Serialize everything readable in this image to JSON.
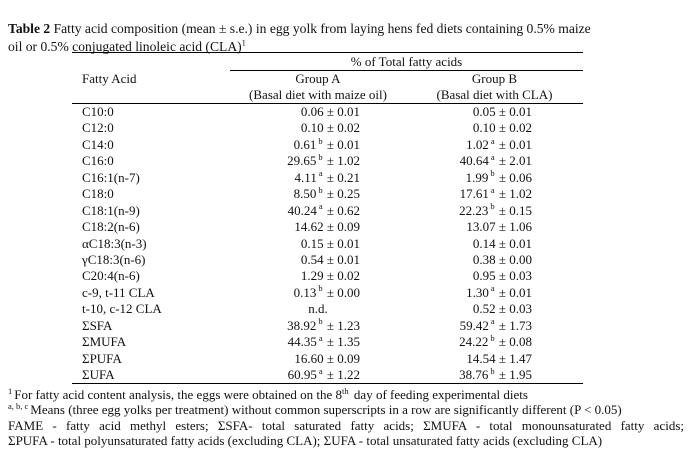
{
  "colors": {
    "background": "#ffffff",
    "text": "#111111",
    "rule": "#000000"
  },
  "caption": {
    "label": "Table 2",
    "line1": " Fatty acid composition (mean ± s.e.) in egg yolk from laying hens fed diets containing 0.5% maize",
    "line2": "oil or 0.5% conjugated linoleic acid (CLA)",
    "footnote_ref": "1"
  },
  "table": {
    "span_header": "% of Total fatty acids",
    "col1_header": "Fatty Acid",
    "group_a": {
      "name": "Group A",
      "subtitle": "(Basal diet with maize oil)"
    },
    "group_b": {
      "name": "Group B",
      "subtitle": "(Basal diet with CLA)"
    },
    "rows": [
      {
        "name": "C10:0",
        "a_val": "0.06",
        "a_sup": "",
        "a_se": "0.01",
        "b_val": "0.05",
        "b_sup": "",
        "b_se": "0.01"
      },
      {
        "name": "C12:0",
        "a_val": "0.10",
        "a_sup": "",
        "a_se": "0.02",
        "b_val": "0.10",
        "b_sup": "",
        "b_se": "0.02"
      },
      {
        "name": "C14:0",
        "a_val": "0.61",
        "a_sup": "b",
        "a_se": "0.01",
        "b_val": "1.02",
        "b_sup": "a",
        "b_se": "0.01"
      },
      {
        "name": "C16:0",
        "a_val": "29.65",
        "a_sup": "b",
        "a_se": "1.02",
        "b_val": "40.64",
        "b_sup": "a",
        "b_se": "2.01"
      },
      {
        "name": "C16:1(n-7)",
        "a_val": "4.11",
        "a_sup": "a",
        "a_se": "0.21",
        "b_val": "1.99",
        "b_sup": "b",
        "b_se": "0.06"
      },
      {
        "name": "C18:0",
        "a_val": "8.50",
        "a_sup": "b",
        "a_se": "0.25",
        "b_val": "17.61",
        "b_sup": "a",
        "b_se": "1.02"
      },
      {
        "name": "C18:1(n-9)",
        "a_val": "40.24",
        "a_sup": "a",
        "a_se": "0.62",
        "b_val": "22.23",
        "b_sup": "b",
        "b_se": "0.15"
      },
      {
        "name": "C18:2(n-6)",
        "a_val": "14.62",
        "a_sup": "",
        "a_se": "0.09",
        "b_val": "13.07",
        "b_sup": "",
        "b_se": "1.06"
      },
      {
        "name": "αC18:3(n-3)",
        "a_val": "0.15",
        "a_sup": "",
        "a_se": "0.01",
        "b_val": "0.14",
        "b_sup": "",
        "b_se": "0.01"
      },
      {
        "name": "γC18:3(n-6)",
        "a_val": "0.54",
        "a_sup": "",
        "a_se": "0.01",
        "b_val": "0.38",
        "b_sup": "",
        "b_se": "0.00"
      },
      {
        "name": "C20:4(n-6)",
        "a_val": "1.29",
        "a_sup": "",
        "a_se": "0.02",
        "b_val": "0.95",
        "b_sup": "",
        "b_se": "0.03"
      },
      {
        "name": "c-9, t-11 CLA",
        "a_val": "0.13",
        "a_sup": "b",
        "a_se": "0.00",
        "b_val": "1.30",
        "b_sup": "a",
        "b_se": "0.01"
      },
      {
        "name": "t-10, c-12 CLA",
        "a_text": "n.d.",
        "b_val": "0.52",
        "b_sup": "",
        "b_se": "0.03"
      },
      {
        "name": "ΣSFA",
        "a_val": "38.92",
        "a_sup": "b",
        "a_se": "1.23",
        "b_val": "59.42",
        "b_sup": "a",
        "b_se": "1.73"
      },
      {
        "name": "ΣMUFA",
        "a_val": "44.35",
        "a_sup": "a",
        "a_se": "1.35",
        "b_val": "24.22",
        "b_sup": "b",
        "b_se": "0.08"
      },
      {
        "name": "ΣPUFA",
        "a_val": "16.60",
        "a_sup": "",
        "a_se": "0.09",
        "b_val": "14.54",
        "b_sup": "",
        "b_se": "1.47"
      },
      {
        "name": "ΣUFA",
        "a_val": "60.95",
        "a_sup": "a",
        "a_se": "1.22",
        "b_val": "38.76",
        "b_sup": "b",
        "b_se": "1.95"
      }
    ]
  },
  "footnotes": {
    "f1": {
      "marker": "1",
      "text_before_sup": "For fatty acid content analysis, the eggs were obtained on the 8",
      "inline_sup": "th",
      "text_after_sup": " day of feeding experimental diets"
    },
    "f2": {
      "marker": "a, b, c",
      "text": "Means (three egg yolks per treatment) without common superscripts in a row are significantly different (P < 0.05)"
    },
    "f3_line1": "FAME - fatty acid methyl esters; ΣSFA- total saturated fatty acids; ΣMUFA - total monounsaturated fatty acids;",
    "f3_line2": "ΣPUFA - total polyunsaturated fatty acids (excluding CLA); ΣUFA - total unsaturated fatty acids (excluding CLA)"
  }
}
